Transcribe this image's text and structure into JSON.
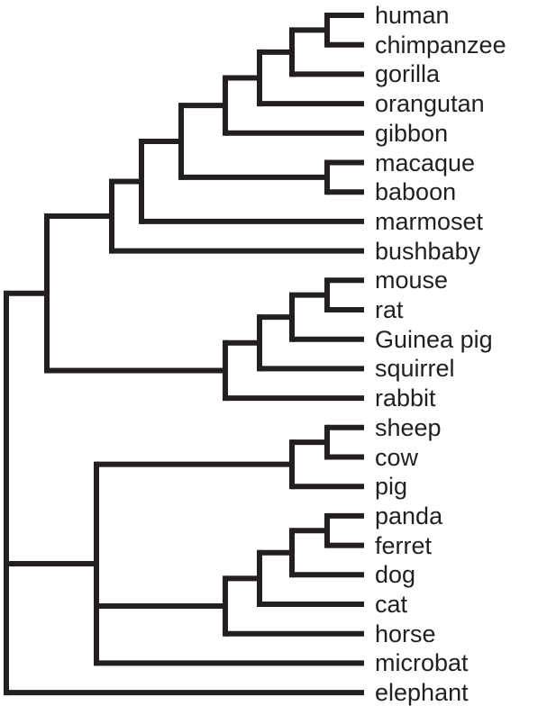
{
  "tree": {
    "leaves": [
      "human",
      "chimpanzee",
      "gorilla",
      "orangutan",
      "gibbon",
      "macaque",
      "baboon",
      "marmoset",
      "bushbaby",
      "mouse",
      "rat",
      "Guinea pig",
      "squirrel",
      "rabbit",
      "sheep",
      "cow",
      "pig",
      "panda",
      "ferret",
      "dog",
      "cat",
      "horse",
      "microbat",
      "elephant"
    ],
    "newick": "(((((((((human,chimpanzee),gorilla),orangutan),gibbon),(macaque,baboon)),marmoset),bushbaby),((((mouse,rat),Guinea pig),squirrel),rabbit)),(((sheep,cow),pig),((((panda,ferret),dog),cat),horse),microbat),elephant);",
    "line_color": "#231f20"
  }
}
